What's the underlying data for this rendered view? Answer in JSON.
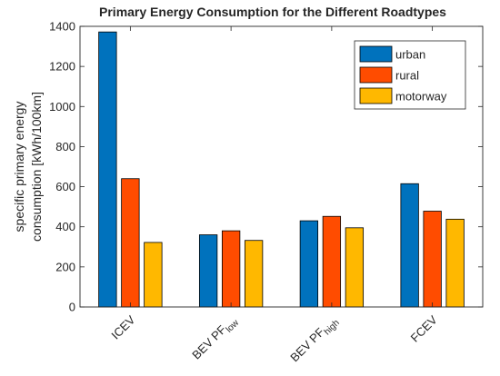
{
  "chart_data": {
    "type": "bar",
    "title": "Primary Energy Consumption for the Different Roadtypes",
    "ylabel_lines": [
      "specific primary energy",
      "consumption [kWh/100km]"
    ],
    "xlabel": "",
    "categories": [
      {
        "main": "ICEV",
        "sub": ""
      },
      {
        "main": "BEV PF",
        "sub": "low"
      },
      {
        "main": "BEV PF",
        "sub": "high"
      },
      {
        "main": "FCEV",
        "sub": ""
      }
    ],
    "series": [
      {
        "name": "urban",
        "color": "#0072BD",
        "values": [
          1372,
          360,
          430,
          615
        ]
      },
      {
        "name": "rural",
        "color": "#FF4C00",
        "values": [
          640,
          380,
          452,
          478
        ]
      },
      {
        "name": "motorway",
        "color": "#FFB800",
        "values": [
          322,
          332,
          395,
          438
        ]
      }
    ],
    "ylim": [
      0,
      1400
    ],
    "yticks": [
      0,
      200,
      400,
      600,
      800,
      1000,
      1200,
      1400
    ],
    "legend_position": "top-right",
    "grid": false
  }
}
